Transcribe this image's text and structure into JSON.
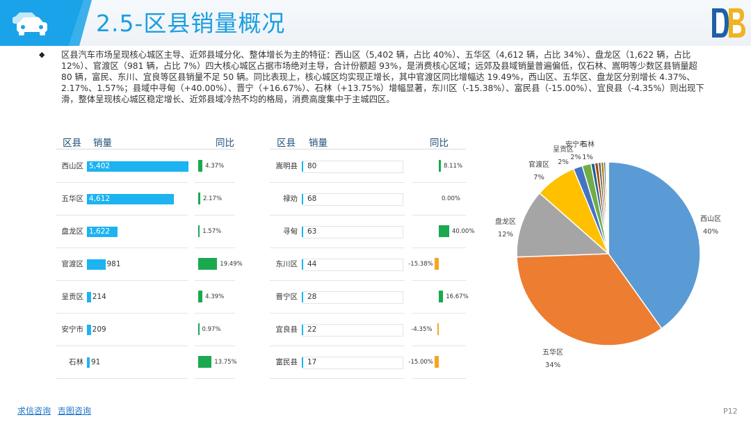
{
  "header": {
    "title": "2.5-区县销量概况",
    "logo_letters": "DB"
  },
  "summary": {
    "bullet": "◆",
    "text": "区县汽车市场呈现核心城区主导、近郊县域分化、整体增长为主的特征：西山区（5,402 辆，占比 40%）、五华区（4,612 辆，占比 34%）、盘龙区（1,622 辆，占比 12%）、官渡区（981 辆，占比 7%）四大核心城区占据市场绝对主导，合计份额超 93%，是消费核心区域；远郊及县域销量普遍偏低，仅石林、嵩明等少数区县销量超 80 辆，富民、东川、宜良等区县销量不足 50 辆。同比表现上，核心城区均实现正增长，其中官渡区同比增幅达 19.49%，西山区、五华区、盘龙区分别增长 4.37%、2.17%、1.57%；县域中寻甸（+40.00%）、晋宁（+16.67%）、石林（+13.75%）增幅显著，东川区（-15.38%）、富民县（-15.00%）、宜良县（-4.35%）则出现下滑，整体呈现核心城区稳定增长、近郊县域冷热不均的格局，消费高度集中于主城四区。"
  },
  "table_headers": {
    "district": "区县",
    "sales": "销量",
    "yoy": "同比"
  },
  "left_table": [
    {
      "name": "西山区",
      "sales": "5,402",
      "value": 5402,
      "yoy": "4.37%",
      "yoy_value": 4.37
    },
    {
      "name": "五华区",
      "sales": "4,612",
      "value": 4612,
      "yoy": "2.17%",
      "yoy_value": 2.17
    },
    {
      "name": "盘龙区",
      "sales": "1,622",
      "value": 1622,
      "yoy": "1.57%",
      "yoy_value": 1.57
    },
    {
      "name": "官渡区",
      "sales": "981",
      "value": 981,
      "yoy": "19.49%",
      "yoy_value": 19.49
    },
    {
      "name": "呈贡区",
      "sales": "214",
      "value": 214,
      "yoy": "4.39%",
      "yoy_value": 4.39
    },
    {
      "name": "安宁市",
      "sales": "209",
      "value": 209,
      "yoy": "0.97%",
      "yoy_value": 0.97
    },
    {
      "name": "石林",
      "sales": "91",
      "value": 91,
      "yoy": "13.75%",
      "yoy_value": 13.75
    }
  ],
  "right_table": [
    {
      "name": "嵩明县",
      "sales": "80",
      "value": 80,
      "yoy": "8.11%",
      "yoy_value": 8.11
    },
    {
      "name": "禄劝",
      "sales": "68",
      "value": 68,
      "yoy": "0.00%",
      "yoy_value": 0.0
    },
    {
      "name": "寻甸",
      "sales": "63",
      "value": 63,
      "yoy": "40.00%",
      "yoy_value": 40.0
    },
    {
      "name": "东川区",
      "sales": "44",
      "value": 44,
      "yoy": "-15.38%",
      "yoy_value": -15.38
    },
    {
      "name": "晋宁区",
      "sales": "28",
      "value": 28,
      "yoy": "16.67%",
      "yoy_value": 16.67
    },
    {
      "name": "宜良县",
      "sales": "22",
      "value": 22,
      "yoy": "-4.35%",
      "yoy_value": -4.35
    },
    {
      "name": "富民县",
      "sales": "17",
      "value": 17,
      "yoy": "-15.00%",
      "yoy_value": -15.0
    }
  ],
  "colors": {
    "accent": "#1aa3e8",
    "sales_bar": "#1cb3f0",
    "yoy_positive": "#1aa94f",
    "yoy_negative": "#f5a623"
  },
  "chart_data": {
    "type": "pie",
    "slices": [
      {
        "label": "西山区",
        "pct_label": "40%",
        "value": 5402,
        "color": "#5b9bd5"
      },
      {
        "label": "五华区",
        "pct_label": "34%",
        "value": 4612,
        "color": "#ed7d31"
      },
      {
        "label": "盘龙区",
        "pct_label": "12%",
        "value": 1622,
        "color": "#a5a5a5"
      },
      {
        "label": "官渡区",
        "pct_label": "7%",
        "value": 981,
        "color": "#ffc000"
      },
      {
        "label": "呈贡区",
        "pct_label": "2%",
        "value": 214,
        "color": "#4472c4"
      },
      {
        "label": "安宁市",
        "pct_label": "2%",
        "value": 209,
        "color": "#70ad47"
      },
      {
        "label": "石林",
        "pct_label": "1%",
        "value": 91,
        "color": "#255e91"
      },
      {
        "label": "嵩明县",
        "pct_label": "",
        "value": 80,
        "color": "#9e480e"
      },
      {
        "label": "禄劝",
        "pct_label": "",
        "value": 68,
        "color": "#636363"
      },
      {
        "label": "寻甸",
        "pct_label": "",
        "value": 63,
        "color": "#997300"
      },
      {
        "label": "东川区",
        "pct_label": "",
        "value": 44,
        "color": "#264478"
      },
      {
        "label": "晋宁区",
        "pct_label": "",
        "value": 28,
        "color": "#43682b"
      },
      {
        "label": "宜良县",
        "pct_label": "",
        "value": 22,
        "color": "#7cafdd"
      },
      {
        "label": "富民县",
        "pct_label": "",
        "value": 17,
        "color": "#f1975a"
      }
    ]
  },
  "footer": {
    "link1": "求信咨询",
    "link2": "吉图咨询",
    "page": "P12"
  }
}
